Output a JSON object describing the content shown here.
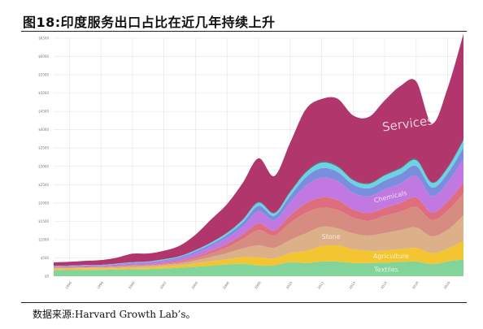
{
  "figure": {
    "title": "图18:印度服务出口占比在近几年持续上升",
    "source": "数据来源:Harvard Growth Lab’s。"
  },
  "chart_data": {
    "type": "area",
    "stacked": true,
    "x": [
      1995,
      1996,
      1997,
      1998,
      1999,
      2000,
      2001,
      2002,
      2003,
      2004,
      2005,
      2006,
      2007,
      2008,
      2009,
      2010,
      2011,
      2012,
      2013,
      2014,
      2015,
      2016,
      2017,
      2018,
      2019,
      2020,
      2021
    ],
    "x_tick_labels": [
      "1996",
      "1998",
      "2000",
      "2002",
      "2004",
      "2006",
      "2008",
      "2010",
      "2012",
      "2014",
      "2016",
      "2018",
      "2020"
    ],
    "y_ticks": [
      0,
      500,
      1000,
      1500,
      2000,
      2500,
      3000,
      3500,
      4000,
      4500,
      5000,
      5500,
      6000,
      6500
    ],
    "y_tick_labels": [
      "$0",
      "$500",
      "$1000",
      "$1500",
      "$2000",
      "$2500",
      "$3000",
      "$3500",
      "$4000",
      "$4500",
      "$5000",
      "$5500",
      "$6000",
      "$6500"
    ],
    "ylim": [
      0,
      6500
    ],
    "grid": true,
    "colors": {
      "services": "#b0366b",
      "chemicals": "#c178e0",
      "minerals": "#d68c80",
      "stone": "#dcb088",
      "agriculture": "#f2c531",
      "textiles": "#82d49a",
      "red": "#de6e7e",
      "blue": "#7b8ddd",
      "cyan": "#6bd3e2",
      "dark": "#4d6b80"
    },
    "series": [
      {
        "name": "Textiles",
        "key": "textiles",
        "values": [
          160,
          165,
          170,
          175,
          180,
          190,
          195,
          210,
          230,
          260,
          290,
          320,
          340,
          290,
          300,
          380,
          360,
          400,
          400,
          360,
          360,
          370,
          390,
          400,
          330,
          400,
          460
        ]
      },
      {
        "name": "Agriculture",
        "key": "agriculture",
        "values": [
          45,
          45,
          45,
          40,
          40,
          45,
          50,
          60,
          70,
          90,
          120,
          140,
          180,
          220,
          190,
          250,
          330,
          420,
          440,
          380,
          330,
          330,
          350,
          370,
          300,
          350,
          500
        ]
      },
      {
        "name": "Stone",
        "key": "stone",
        "values": [
          20,
          20,
          25,
          30,
          35,
          40,
          40,
          45,
          55,
          80,
          120,
          170,
          240,
          330,
          290,
          360,
          480,
          530,
          470,
          430,
          420,
          480,
          520,
          560,
          460,
          520,
          700
        ]
      },
      {
        "name": "",
        "key": "minerals",
        "values": [
          5,
          5,
          5,
          5,
          10,
          15,
          20,
          25,
          40,
          60,
          100,
          160,
          260,
          420,
          330,
          470,
          560,
          520,
          500,
          430,
          410,
          470,
          500,
          560,
          440,
          520,
          600
        ]
      },
      {
        "name": "",
        "key": "red",
        "values": [
          10,
          10,
          10,
          10,
          15,
          15,
          15,
          20,
          25,
          40,
          60,
          90,
          120,
          180,
          140,
          200,
          260,
          280,
          270,
          220,
          210,
          220,
          240,
          260,
          210,
          250,
          300
        ]
      },
      {
        "name": "Chemicals",
        "key": "chemicals",
        "values": [
          20,
          25,
          30,
          30,
          35,
          40,
          45,
          55,
          70,
          100,
          130,
          170,
          220,
          330,
          280,
          360,
          480,
          540,
          520,
          460,
          450,
          500,
          530,
          580,
          450,
          520,
          650
        ]
      },
      {
        "name": "",
        "key": "blue",
        "values": [
          10,
          10,
          10,
          10,
          15,
          20,
          20,
          25,
          35,
          50,
          60,
          80,
          110,
          150,
          120,
          170,
          230,
          260,
          250,
          220,
          220,
          240,
          260,
          280,
          230,
          250,
          300
        ]
      },
      {
        "name": "",
        "key": "cyan",
        "values": [
          10,
          10,
          10,
          10,
          15,
          15,
          15,
          20,
          20,
          30,
          40,
          50,
          70,
          90,
          70,
          100,
          130,
          150,
          140,
          120,
          120,
          140,
          150,
          160,
          130,
          150,
          200
        ]
      },
      {
        "name": "",
        "key": "dark",
        "values": [
          0,
          0,
          0,
          0,
          0,
          5,
          5,
          5,
          5,
          5,
          5,
          10,
          10,
          20,
          15,
          20,
          30,
          30,
          30,
          20,
          20,
          20,
          25,
          30,
          20,
          25,
          30
        ]
      },
      {
        "name": "Services",
        "key": "services",
        "values": [
          100,
          105,
          115,
          130,
          160,
          230,
          215,
          230,
          285,
          420,
          630,
          780,
          1000,
          1190,
          1000,
          1330,
          1700,
          1710,
          1830,
          1750,
          1810,
          2030,
          2230,
          2120,
          1600,
          2160,
          2880
        ]
      }
    ]
  }
}
